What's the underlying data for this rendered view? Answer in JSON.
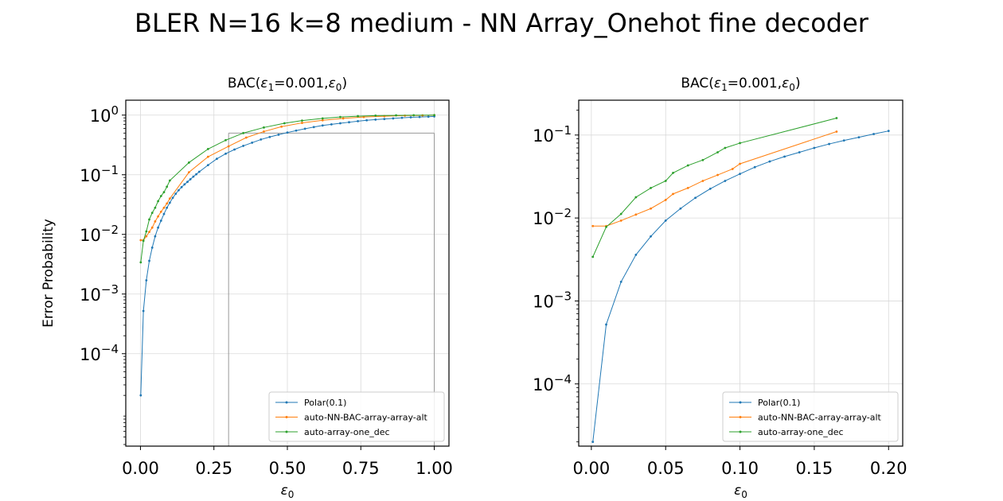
{
  "figure": {
    "title": "BLER N=16 k=8 medium - NN Array_Onehot fine decoder"
  },
  "colors": {
    "polar": "#1f77b4",
    "nn": "#ff7f0e",
    "onehot": "#2ca02c",
    "grid": "#d9d9d9",
    "inset_box": "#999999"
  },
  "chart_data": [
    {
      "type": "line",
      "title_prefix": "BAC(",
      "title_eps1": "ε",
      "title_sub1": "1",
      "title_mid": "=0.001,",
      "title_eps0": "ε",
      "title_sub0": "0",
      "title_suffix": ")",
      "xlabel_main": "ε",
      "xlabel_sub": "0",
      "ylabel": "Error Probability",
      "yscale": "log",
      "xlim": [
        -0.05,
        1.05
      ],
      "ylim_log10": [
        -5.55,
        0.25
      ],
      "xticks": [
        0,
        0.25,
        0.5,
        0.75,
        1.0
      ],
      "xtick_labels": [
        "0.00",
        "0.25",
        "0.50",
        "0.75",
        "1.00"
      ],
      "yticks_exp": [
        0,
        -1,
        -2,
        -3,
        -4
      ],
      "ytick_base": "10",
      "ytick_exp_labels": [
        "0",
        "−1",
        "−2",
        "−3",
        "−4"
      ],
      "grid": true,
      "legend_position": "lower-right",
      "zoom_box": {
        "x": [
          0.3,
          1.0
        ],
        "y": [
          1e-07,
          0.5
        ]
      },
      "series": [
        {
          "name": "Polar(0.1)",
          "color_key": "polar",
          "x": [
            0.001,
            0.01,
            0.02,
            0.03,
            0.04,
            0.05,
            0.06,
            0.07,
            0.08,
            0.09,
            0.1,
            0.11,
            0.12,
            0.13,
            0.14,
            0.15,
            0.16,
            0.17,
            0.18,
            0.19,
            0.2,
            0.23,
            0.26,
            0.29,
            0.32,
            0.35,
            0.38,
            0.41,
            0.44,
            0.47,
            0.5,
            0.53,
            0.56,
            0.59,
            0.62,
            0.65,
            0.68,
            0.71,
            0.74,
            0.77,
            0.8,
            0.83,
            0.86,
            0.89,
            0.92,
            0.95,
            0.98,
            1.0
          ],
          "y": [
            2e-05,
            0.00052,
            0.0017,
            0.0036,
            0.006,
            0.0093,
            0.013,
            0.017,
            0.022,
            0.028,
            0.034,
            0.041,
            0.048,
            0.055,
            0.062,
            0.069,
            0.076,
            0.084,
            0.093,
            0.102,
            0.112,
            0.145,
            0.185,
            0.225,
            0.265,
            0.305,
            0.345,
            0.39,
            0.43,
            0.47,
            0.51,
            0.55,
            0.59,
            0.63,
            0.67,
            0.7,
            0.73,
            0.76,
            0.79,
            0.82,
            0.84,
            0.86,
            0.88,
            0.9,
            0.92,
            0.93,
            0.94,
            0.95
          ]
        },
        {
          "name": "auto-NN-BAC-array-array-alt",
          "color_key": "nn",
          "x": [
            0.001,
            0.01,
            0.02,
            0.03,
            0.04,
            0.05,
            0.06,
            0.07,
            0.08,
            0.09,
            0.1,
            0.165,
            0.23,
            0.3,
            0.36,
            0.42,
            0.48,
            0.55,
            0.62,
            0.69,
            0.76,
            0.83,
            0.9,
            0.96,
            1.0
          ],
          "y": [
            0.008,
            0.008,
            0.0093,
            0.011,
            0.013,
            0.0165,
            0.02,
            0.024,
            0.028,
            0.033,
            0.04,
            0.11,
            0.2,
            0.3,
            0.42,
            0.53,
            0.64,
            0.74,
            0.82,
            0.88,
            0.93,
            0.96,
            0.98,
            0.99,
            1.0
          ]
        },
        {
          "name": "auto-array-one_dec",
          "color_key": "onehot",
          "x": [
            0.001,
            0.01,
            0.02,
            0.03,
            0.04,
            0.05,
            0.06,
            0.07,
            0.08,
            0.09,
            0.1,
            0.165,
            0.23,
            0.29,
            0.35,
            0.42,
            0.49,
            0.55,
            0.62,
            0.68,
            0.74,
            0.8,
            0.87,
            0.93,
            1.0
          ],
          "y": [
            0.0034,
            0.0078,
            0.0112,
            0.0178,
            0.023,
            0.028,
            0.036,
            0.044,
            0.051,
            0.063,
            0.08,
            0.16,
            0.27,
            0.38,
            0.5,
            0.62,
            0.73,
            0.81,
            0.88,
            0.93,
            0.96,
            0.98,
            0.99,
            0.995,
            1.0
          ]
        }
      ]
    },
    {
      "type": "line",
      "title_prefix": "BAC(",
      "title_eps1": "ε",
      "title_sub1": "1",
      "title_mid": "=0.001,",
      "title_eps0": "ε",
      "title_sub0": "0",
      "title_suffix": ")",
      "xlabel_main": "ε",
      "xlabel_sub": "0",
      "ylabel": "",
      "yscale": "log",
      "xlim": [
        -0.0085,
        0.2095
      ],
      "ylim_log10": [
        -4.75,
        -0.58
      ],
      "xticks": [
        0,
        0.05,
        0.1,
        0.15,
        0.2
      ],
      "xtick_labels": [
        "0.00",
        "0.05",
        "0.10",
        "0.15",
        "0.20"
      ],
      "yticks_exp": [
        -1,
        -2,
        -3,
        -4
      ],
      "ytick_base": "10",
      "ytick_exp_labels": [
        "−1",
        "−2",
        "−3",
        "−4"
      ],
      "grid": true,
      "legend_position": "lower-right",
      "series": [
        {
          "name": "Polar(0.1)",
          "color_key": "polar",
          "x": [
            0.001,
            0.01,
            0.02,
            0.03,
            0.04,
            0.05,
            0.06,
            0.07,
            0.08,
            0.09,
            0.1,
            0.11,
            0.12,
            0.13,
            0.14,
            0.15,
            0.16,
            0.17,
            0.18,
            0.19,
            0.2
          ],
          "y": [
            2e-05,
            0.00052,
            0.0017,
            0.0036,
            0.006,
            0.0093,
            0.013,
            0.0175,
            0.0225,
            0.028,
            0.034,
            0.041,
            0.048,
            0.055,
            0.062,
            0.07,
            0.078,
            0.086,
            0.094,
            0.103,
            0.112
          ]
        },
        {
          "name": "auto-NN-BAC-array-array-alt",
          "color_key": "nn",
          "x": [
            0.001,
            0.01,
            0.02,
            0.03,
            0.04,
            0.05,
            0.055,
            0.065,
            0.075,
            0.085,
            0.095,
            0.1,
            0.165
          ],
          "y": [
            0.008,
            0.008,
            0.0093,
            0.011,
            0.013,
            0.0165,
            0.0195,
            0.023,
            0.028,
            0.033,
            0.039,
            0.045,
            0.11
          ]
        },
        {
          "name": "auto-array-one_dec",
          "color_key": "onehot",
          "x": [
            0.001,
            0.01,
            0.02,
            0.03,
            0.04,
            0.05,
            0.055,
            0.065,
            0.075,
            0.085,
            0.09,
            0.1,
            0.165
          ],
          "y": [
            0.0034,
            0.0078,
            0.0112,
            0.0178,
            0.023,
            0.028,
            0.035,
            0.043,
            0.05,
            0.062,
            0.07,
            0.08,
            0.16
          ]
        }
      ]
    }
  ]
}
